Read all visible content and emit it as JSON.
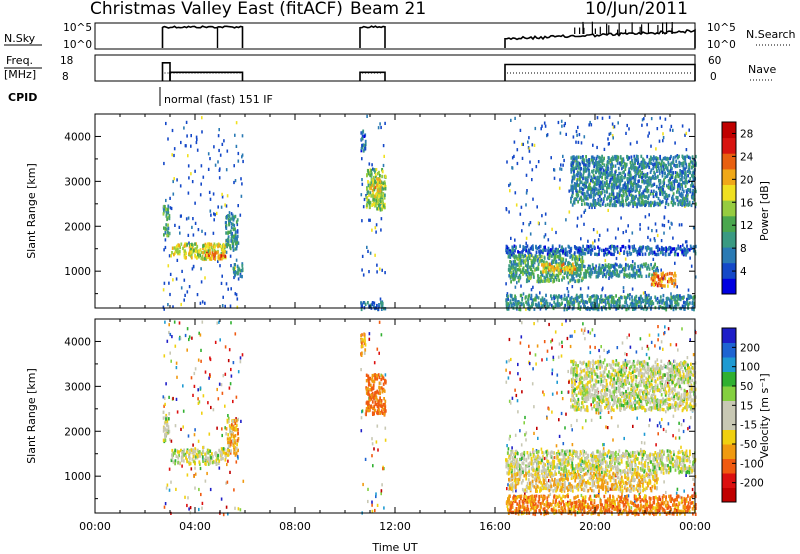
{
  "header": {
    "radar": "Christmas Valley East (fitACF)",
    "beam": "Beam 21",
    "date": "10/Jun/2011"
  },
  "sky_panel": {
    "left_label": "N.Sky",
    "right_label": "N.Search",
    "left_ticks": [
      "10^5",
      "10^0"
    ],
    "right_ticks": [
      "10^5",
      "10^0"
    ]
  },
  "freq_panel": {
    "left_label_1": "Freq.",
    "left_label_2": "[MHz]",
    "right_label": "Nave",
    "left_ticks": [
      "18",
      "8"
    ],
    "right_ticks": [
      "60",
      "0"
    ]
  },
  "cpid": {
    "label": "CPID",
    "mode": "normal (fast) 151 IF"
  },
  "colors": {
    "power_scale": [
      "#0000e0",
      "#1448c8",
      "#2a7ab4",
      "#3a9a82",
      "#4aa74e",
      "#96cc40",
      "#f0e020",
      "#f0a818",
      "#e86010",
      "#d81410",
      "#c00000"
    ],
    "velocity_scale": [
      "#1e1ec8",
      "#1e64d2",
      "#1e9ad2",
      "#30b030",
      "#84d040",
      "#c8c8b4",
      "#c8c8b4",
      "#f0d010",
      "#f09a10",
      "#f05a10",
      "#dc1010",
      "#c00000"
    ]
  },
  "chart_data": [
    {
      "type": "heatmap",
      "name": "power",
      "xlabel": "",
      "ylabel": "Slant Range [km]",
      "xlim": [
        0,
        24
      ],
      "ylim": [
        180,
        4500
      ],
      "yticks": [
        "1000",
        "2000",
        "3000",
        "4000"
      ],
      "colorbar": {
        "label": "Power [dB]",
        "ticks": [
          "4",
          "8",
          "12",
          "16",
          "20",
          "24",
          "28"
        ],
        "range": [
          0,
          30
        ]
      },
      "bands": [
        {
          "t": [
            2.7,
            2.95
          ],
          "r": [
            1800,
            2500
          ],
          "v": 11
        },
        {
          "t": [
            3.0,
            5.2
          ],
          "r": [
            1300,
            1650
          ],
          "v": 17
        },
        {
          "t": [
            4.3,
            5.2
          ],
          "r": [
            1300,
            1450
          ],
          "v": 22
        },
        {
          "t": [
            5.2,
            5.7
          ],
          "r": [
            1500,
            2300
          ],
          "v": 9
        },
        {
          "t": [
            5.5,
            5.9
          ],
          "r": [
            900,
            1200
          ],
          "v": 8
        },
        {
          "t": [
            10.6,
            10.8
          ],
          "r": [
            3700,
            4200
          ],
          "v": 6
        },
        {
          "t": [
            10.8,
            11.6
          ],
          "r": [
            2400,
            3300
          ],
          "v": 14
        },
        {
          "t": [
            11.0,
            11.4
          ],
          "r": [
            2700,
            3100
          ],
          "v": 18
        },
        {
          "t": [
            16.4,
            24.0
          ],
          "r": [
            1400,
            1600
          ],
          "v": 5
        },
        {
          "t": [
            16.5,
            19.5
          ],
          "r": [
            800,
            1400
          ],
          "v": 11
        },
        {
          "t": [
            17.8,
            19.2
          ],
          "r": [
            1000,
            1200
          ],
          "v": 19
        },
        {
          "t": [
            19.5,
            22.5
          ],
          "r": [
            900,
            1200
          ],
          "v": 9
        },
        {
          "t": [
            22.2,
            23.2
          ],
          "r": [
            700,
            1000
          ],
          "v": 22
        },
        {
          "t": [
            19.0,
            24.0
          ],
          "r": [
            2500,
            3600
          ],
          "v": 8
        },
        {
          "t": [
            16.4,
            24.0
          ],
          "r": [
            180,
            500
          ],
          "v": 9
        },
        {
          "t": [
            10.6,
            11.6
          ],
          "r": [
            180,
            350
          ],
          "v": 7
        }
      ]
    },
    {
      "type": "heatmap",
      "name": "velocity",
      "xlabel": "Time UT",
      "ylabel": "Slant Range [km]",
      "xlim": [
        0,
        24
      ],
      "ylim": [
        180,
        4500
      ],
      "yticks": [
        "1000",
        "2000",
        "3000",
        "4000"
      ],
      "xticks": [
        "00:00",
        "04:00",
        "08:00",
        "12:00",
        "16:00",
        "20:00",
        "00:00"
      ],
      "colorbar": {
        "label": "Velocity [m s⁻¹]",
        "ticks": [
          "200",
          "100",
          "50",
          "15",
          "-15",
          "-50",
          "-100",
          "-200"
        ],
        "range": [
          -250,
          250
        ]
      },
      "bands": [
        {
          "t": [
            2.7,
            2.95
          ],
          "r": [
            1800,
            2500
          ],
          "v": 0
        },
        {
          "t": [
            3.0,
            5.2
          ],
          "r": [
            1300,
            1650
          ],
          "v": 0
        },
        {
          "t": [
            5.2,
            5.7
          ],
          "r": [
            1500,
            2300
          ],
          "v": -30
        },
        {
          "t": [
            10.6,
            10.8
          ],
          "r": [
            3700,
            4200
          ],
          "v": -40
        },
        {
          "t": [
            10.8,
            11.6
          ],
          "r": [
            2400,
            3300
          ],
          "v": -60
        },
        {
          "t": [
            16.4,
            24.0
          ],
          "r": [
            1100,
            1600
          ],
          "v": 0
        },
        {
          "t": [
            16.5,
            22.5
          ],
          "r": [
            700,
            1100
          ],
          "v": -20
        },
        {
          "t": [
            19.0,
            24.0
          ],
          "r": [
            2500,
            3600
          ],
          "v": 0
        },
        {
          "t": [
            16.4,
            24.0
          ],
          "r": [
            180,
            600
          ],
          "v": -50
        }
      ]
    }
  ],
  "ops": {
    "segments": [
      [
        2.7,
        5.9
      ],
      [
        10.6,
        11.6
      ],
      [
        16.4,
        24.0
      ]
    ],
    "nsky_dips": [
      [
        4.9,
        5.0
      ]
    ],
    "freq": [
      {
        "t": [
          2.7,
          3.0
        ],
        "f": 15.5
      },
      {
        "t": [
          3.0,
          5.9
        ],
        "f": 10.0
      },
      {
        "t": [
          10.6,
          11.6
        ],
        "f": 10.0
      },
      {
        "t": [
          16.4,
          24.0
        ],
        "f": 14.5
      }
    ]
  }
}
